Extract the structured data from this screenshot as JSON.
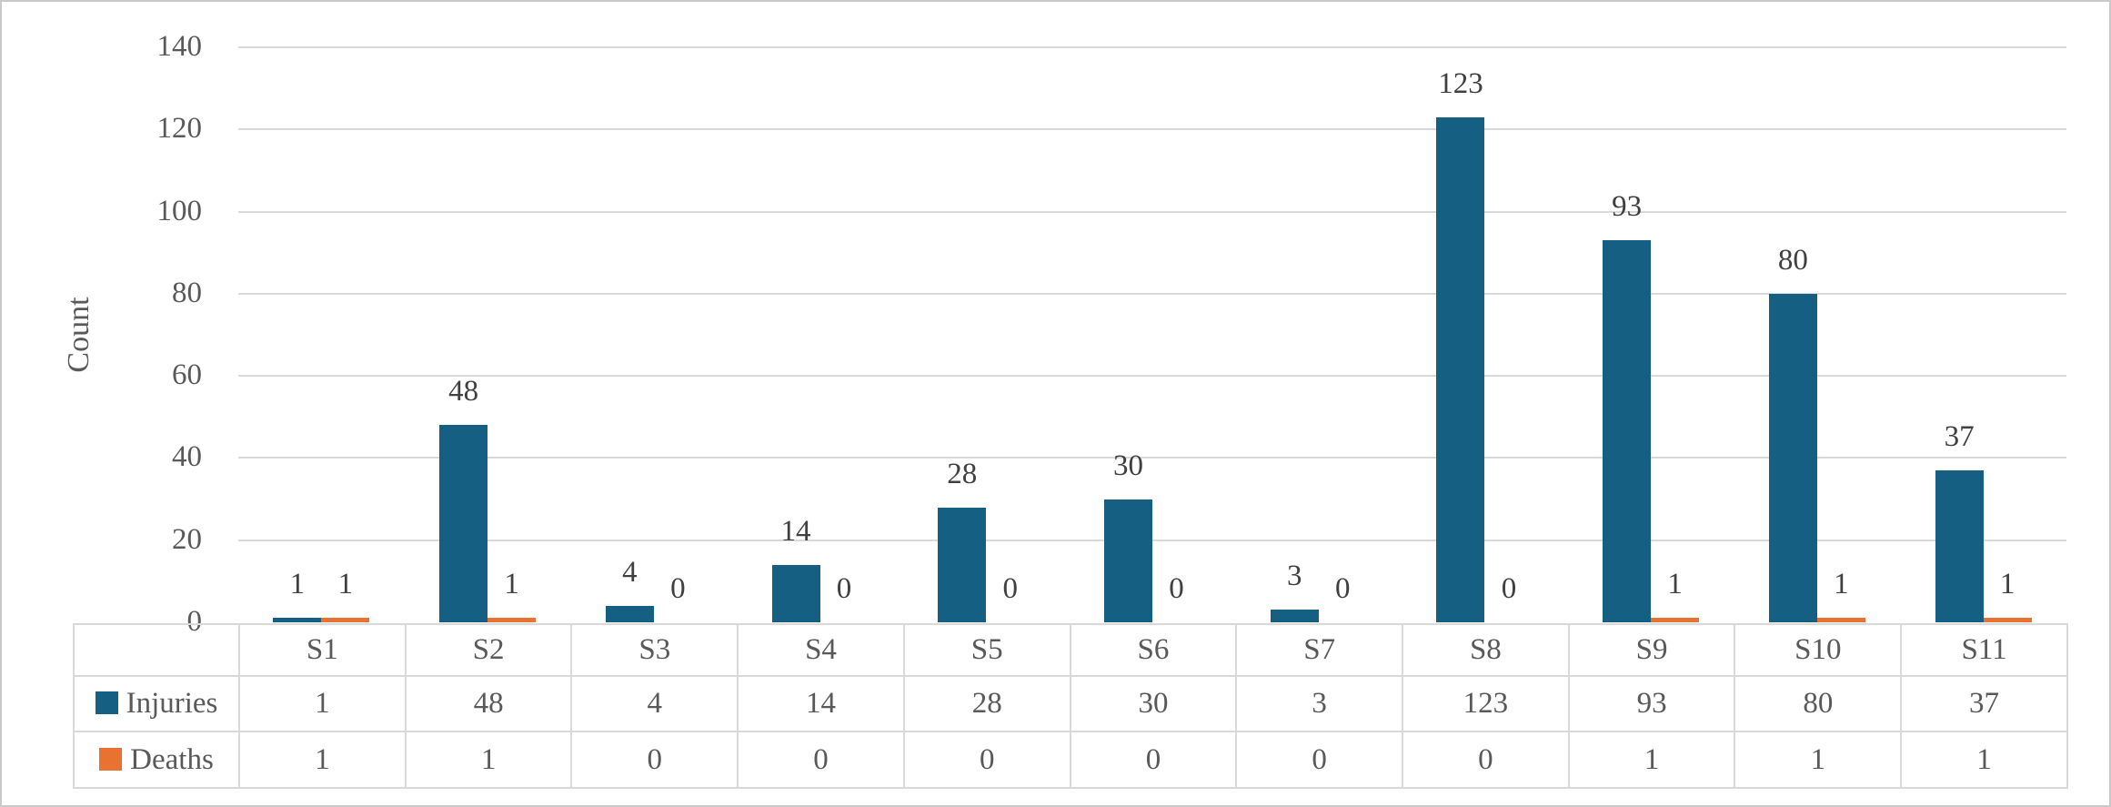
{
  "chart_data": {
    "type": "bar",
    "title": "",
    "ylabel": "Count",
    "xlabel": "",
    "ylim": [
      0,
      140
    ],
    "ytick_step": 20,
    "grid": true,
    "data_labels": true,
    "data_table": true,
    "legend_position": "table-left",
    "categories": [
      "S1",
      "S2",
      "S3",
      "S4",
      "S5",
      "S6",
      "S7",
      "S8",
      "S9",
      "S10",
      "S11"
    ],
    "series": [
      {
        "name": "Injuries",
        "color": "#156082",
        "values": [
          1,
          48,
          4,
          14,
          28,
          30,
          3,
          123,
          93,
          80,
          37
        ]
      },
      {
        "name": "Deaths",
        "color": "#e97132",
        "values": [
          1,
          1,
          0,
          0,
          0,
          0,
          0,
          0,
          1,
          1,
          1
        ]
      }
    ],
    "yticks": [
      0,
      20,
      40,
      60,
      80,
      100,
      120,
      140
    ]
  },
  "colors": {
    "gridline": "#d9d9d9",
    "tick_text": "#595959",
    "data_label_text": "#404040",
    "frame_border": "#c9c9c9"
  }
}
